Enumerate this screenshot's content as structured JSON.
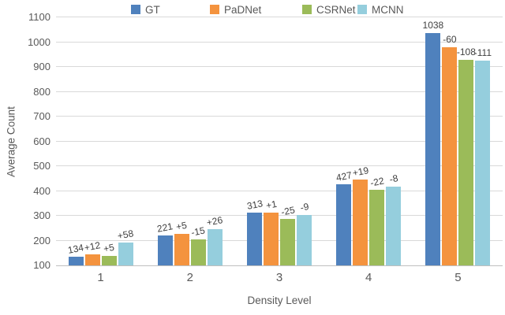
{
  "chart_data": {
    "type": "bar",
    "title": "",
    "xlabel": "Density Level",
    "ylabel": "Average Count",
    "categories": [
      "1",
      "2",
      "3",
      "4",
      "5"
    ],
    "ylim": [
      100,
      1100
    ],
    "ytick_step": 100,
    "grid": true,
    "legend_position": "top",
    "series": [
      {
        "name": "GT",
        "color": "#4F81BD",
        "values": [
          134,
          221,
          313,
          427,
          1038
        ],
        "labels": [
          "134",
          "221",
          "313",
          "427",
          "1038"
        ]
      },
      {
        "name": "PaDNet",
        "color": "#F4933E",
        "values": [
          146,
          226,
          314,
          446,
          978
        ],
        "labels": [
          "+12",
          "+5",
          "+1",
          "+19",
          "-60"
        ]
      },
      {
        "name": "CSRNet",
        "color": "#9BBB59",
        "values": [
          139,
          206,
          288,
          405,
          930
        ],
        "labels": [
          "+5",
          "-15",
          "-25",
          "-22",
          "-108"
        ]
      },
      {
        "name": "MCNN",
        "color": "#95CEDD",
        "values": [
          192,
          247,
          304,
          419,
          927
        ],
        "labels": [
          "+58",
          "+26",
          "-9",
          "-8",
          "-111"
        ]
      }
    ],
    "colors": {
      "gridline": "#D9D9D9",
      "axis_line": "#BFBFBF",
      "tick_text": "#595959",
      "value_label_text": "#404040"
    }
  }
}
